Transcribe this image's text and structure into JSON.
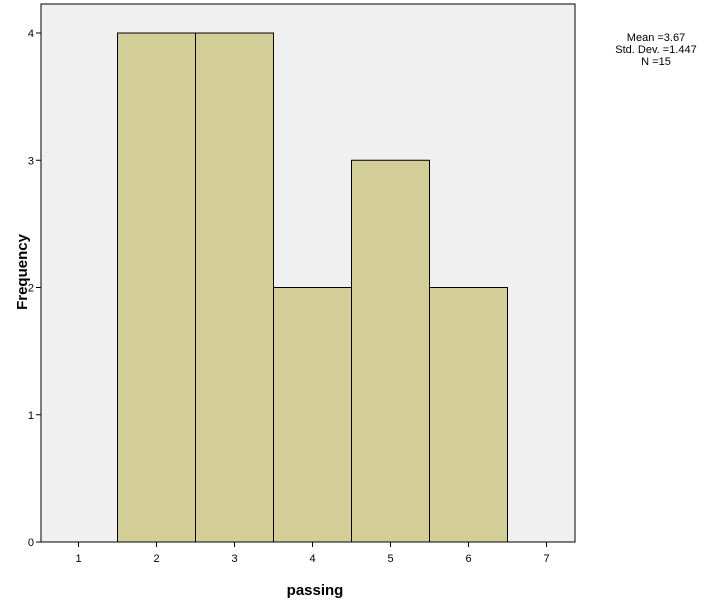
{
  "chart_data": {
    "type": "bar",
    "title": "",
    "xlabel": "passing",
    "ylabel": "Frequency",
    "x_ticks": [
      "1",
      "2",
      "3",
      "4",
      "5",
      "6",
      "7"
    ],
    "y_ticks": [
      "0",
      "1",
      "2",
      "3",
      "4"
    ],
    "xlim": [
      0.7,
      7.3
    ],
    "ylim": [
      0,
      4.2
    ],
    "bins": [
      {
        "x_start": 1.5,
        "x_end": 2.5,
        "value": 4
      },
      {
        "x_start": 2.5,
        "x_end": 3.5,
        "value": 4
      },
      {
        "x_start": 3.5,
        "x_end": 4.5,
        "value": 2
      },
      {
        "x_start": 4.5,
        "x_end": 5.5,
        "value": 3
      },
      {
        "x_start": 5.5,
        "x_end": 6.5,
        "value": 2
      }
    ],
    "grid": false,
    "bar_color": "#d3ce98",
    "plot_background": "#f0f0f0",
    "stats": {
      "mean": "Mean =3.67",
      "std_dev": "Std. Dev. =1.447",
      "n": "N =15"
    }
  }
}
